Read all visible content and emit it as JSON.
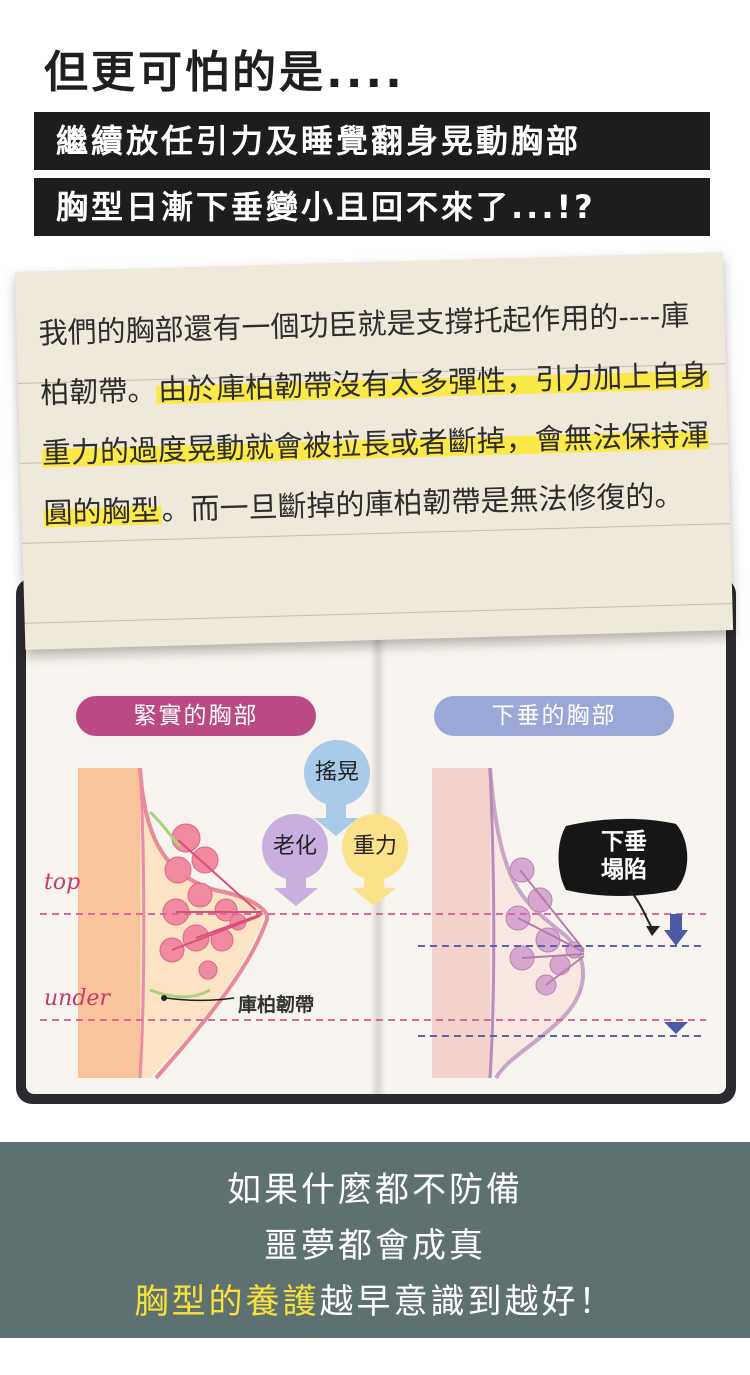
{
  "header": {
    "title": "但更可怕的是....",
    "bar1": "繼續放任引力及睡覺翻身晃動胸部",
    "bar2": "胸型日漸下垂變小且回不來了...!?"
  },
  "note": {
    "part1": "我們的胸部還有一個功臣就是支撐托起作用的----庫柏韌帶。",
    "highlight1": "由於庫柏韌帶沒有太多彈性，引力加上自身重力的過度晃動就會被拉長或者斷掉，會無法保持渾圓的胸型",
    "part2": "。而一旦斷掉的庫柏韌帶是無法修復的。"
  },
  "diagram": {
    "firm_label": "緊實的胸部",
    "sag_label": "下垂的胸部",
    "factors": [
      "搖晃",
      "老化",
      "重力"
    ],
    "line_top": "top",
    "line_under": "under",
    "ligament": "庫柏韌帶",
    "sag_note_line1": "下垂",
    "sag_note_line2": "塌陷",
    "colors": {
      "firm_accent": "#bb4a84",
      "sag_accent": "#9ba8d7",
      "shake": "#a8cbea",
      "aging": "#c8afe0",
      "gravity": "#fbe28a"
    }
  },
  "footer": {
    "line1": "如果什麼都不防備",
    "line2": "噩夢都會成真",
    "line3_highlight": "胸型的養護",
    "line3_rest": "越早意識到越好！"
  }
}
